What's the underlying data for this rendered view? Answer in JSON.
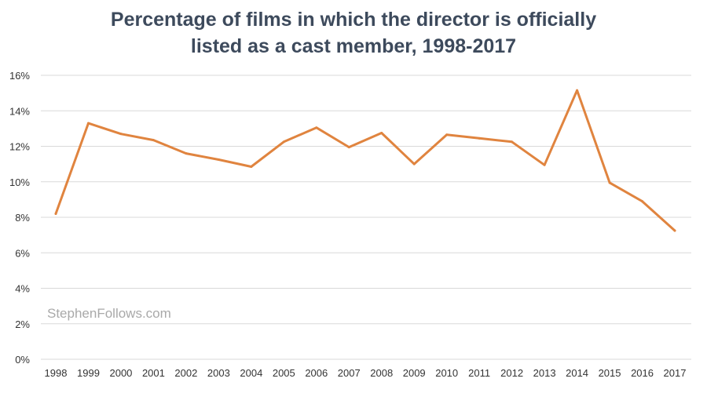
{
  "chart_data": {
    "type": "line",
    "title_line1": "Percentage of films in which the director is officially",
    "title_line2": "listed as a cast member, 1998-2017",
    "xlabel": "",
    "ylabel": "",
    "categories": [
      "1998",
      "1999",
      "2000",
      "2001",
      "2002",
      "2003",
      "2004",
      "2005",
      "2006",
      "2007",
      "2008",
      "2009",
      "2010",
      "2011",
      "2012",
      "2013",
      "2014",
      "2015",
      "2016",
      "2017"
    ],
    "series": [
      {
        "values": [
          8.2,
          13.3,
          12.7,
          12.35,
          11.6,
          11.25,
          10.85,
          12.25,
          13.05,
          11.95,
          12.75,
          11.0,
          12.65,
          12.45,
          12.25,
          10.95,
          15.15,
          9.95,
          8.9,
          7.25
        ]
      }
    ],
    "ylim": [
      0,
      16
    ],
    "yticks": [
      0,
      2,
      4,
      6,
      8,
      10,
      12,
      14,
      16
    ],
    "ytick_labels": [
      "0%",
      "2%",
      "4%",
      "6%",
      "8%",
      "10%",
      "12%",
      "14%",
      "16%"
    ],
    "grid": true,
    "line_color": "#e0843f",
    "grid_color": "#d9d9d9",
    "watermark": "StephenFollows.com"
  }
}
